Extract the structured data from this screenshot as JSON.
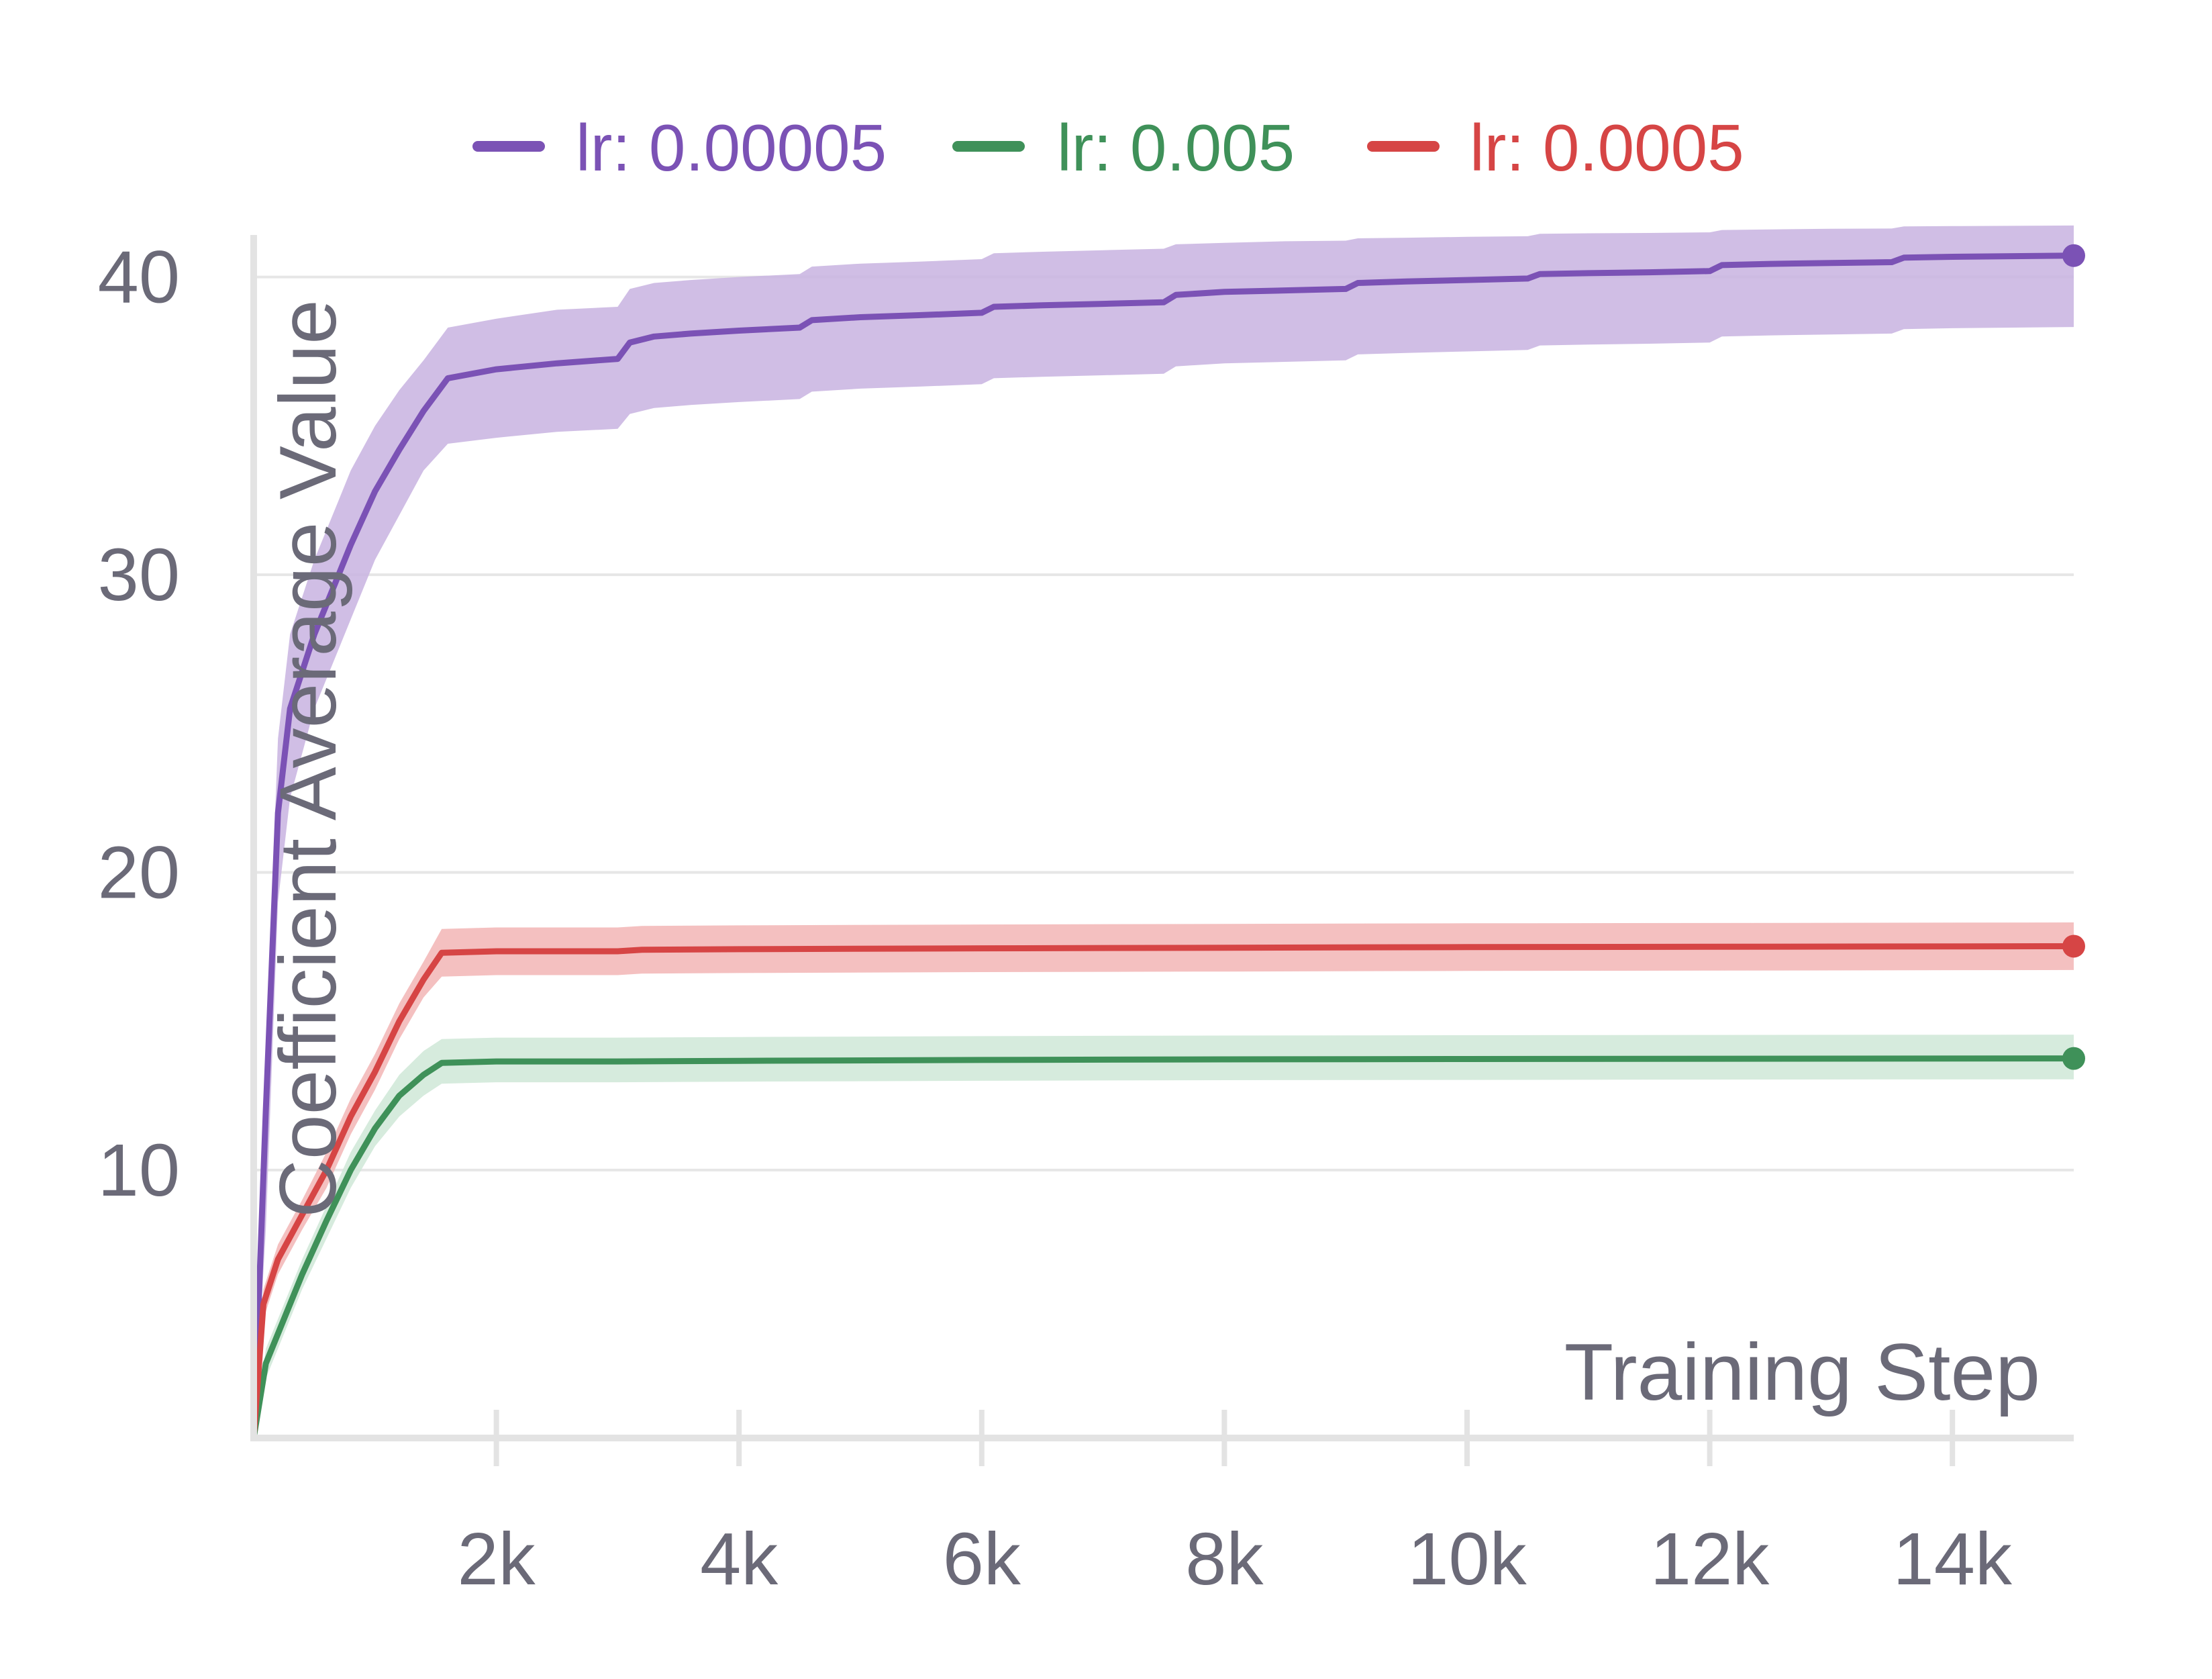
{
  "chart_data": {
    "type": "line",
    "xlabel": "Training Step",
    "ylabel": "Coefficient Average Value",
    "xlim": [
      0,
      15000
    ],
    "ylim": [
      1,
      41.3
    ],
    "xticks": [
      2000,
      4000,
      6000,
      8000,
      10000,
      12000,
      14000
    ],
    "xtick_labels": [
      "2k",
      "4k",
      "6k",
      "8k",
      "10k",
      "12k",
      "14k"
    ],
    "yticks": [
      10,
      20,
      30,
      40
    ],
    "ytick_labels": [
      "10",
      "20",
      "30",
      "40"
    ],
    "grid": "horizontal",
    "legend_position": "top",
    "series": [
      {
        "name": "lr: 0.00005",
        "color": "#7b52b5",
        "band_color": "#c8b3e0",
        "x": [
          0,
          100,
          200,
          300,
          500,
          700,
          800,
          1000,
          1200,
          1400,
          1600,
          2000,
          2500,
          3000,
          3100,
          3300,
          3600,
          4000,
          4500,
          4600,
          5000,
          5500,
          6000,
          6100,
          6500,
          7000,
          7500,
          7600,
          8000,
          8500,
          9000,
          9100,
          9500,
          10000,
          10500,
          10600,
          11000,
          11500,
          12000,
          12100,
          12500,
          13000,
          13500,
          13600,
          14000,
          14500,
          15000
        ],
        "y": [
          1,
          12,
          22,
          25.5,
          28,
          30,
          31,
          32.8,
          34.2,
          35.5,
          36.6,
          36.9,
          37.1,
          37.25,
          37.8,
          38.0,
          38.1,
          38.2,
          38.3,
          38.55,
          38.65,
          38.72,
          38.8,
          39.0,
          39.05,
          39.1,
          39.15,
          39.4,
          39.5,
          39.55,
          39.6,
          39.8,
          39.85,
          39.9,
          39.95,
          40.1,
          40.13,
          40.16,
          40.2,
          40.4,
          40.44,
          40.47,
          40.5,
          40.65,
          40.68,
          40.7,
          40.72
        ],
        "lower": [
          1,
          8,
          19,
          22.5,
          25.5,
          27.5,
          28.5,
          30.5,
          32,
          33.5,
          34.4,
          34.6,
          34.8,
          34.9,
          35.4,
          35.6,
          35.7,
          35.8,
          35.9,
          36.15,
          36.25,
          36.32,
          36.4,
          36.6,
          36.65,
          36.7,
          36.75,
          37.0,
          37.1,
          37.15,
          37.2,
          37.4,
          37.45,
          37.5,
          37.55,
          37.7,
          37.73,
          37.76,
          37.8,
          38.0,
          38.04,
          38.07,
          38.1,
          38.25,
          38.28,
          38.3,
          38.32
        ],
        "upper": [
          1,
          14,
          24.5,
          28,
          30.5,
          32.5,
          33.5,
          35,
          36.2,
          37.2,
          38.3,
          38.6,
          38.9,
          39.0,
          39.6,
          39.8,
          39.9,
          40.0,
          40.1,
          40.35,
          40.45,
          40.52,
          40.6,
          40.8,
          40.85,
          40.9,
          40.95,
          41.1,
          41.15,
          41.2,
          41.22,
          41.3,
          41.32,
          41.35,
          41.37,
          41.45,
          41.47,
          41.48,
          41.5,
          41.58,
          41.6,
          41.62,
          41.63,
          41.7,
          41.71,
          41.72,
          41.73
        ]
      },
      {
        "name": "lr: 0.005",
        "color": "#3f9159",
        "band_color": "#cfe8d7",
        "x": [
          0,
          100,
          250,
          400,
          600,
          800,
          1000,
          1200,
          1400,
          1550,
          2000,
          3000,
          4000,
          6000,
          8000,
          10000,
          12000,
          15000
        ],
        "y": [
          1,
          3.5,
          5.0,
          6.5,
          8.3,
          10.0,
          11.4,
          12.5,
          13.2,
          13.6,
          13.65,
          13.65,
          13.67,
          13.7,
          13.72,
          13.73,
          13.74,
          13.75
        ],
        "lower": [
          1,
          3.0,
          4.5,
          6.0,
          7.7,
          9.4,
          10.8,
          11.8,
          12.5,
          12.9,
          12.95,
          12.95,
          12.97,
          13.0,
          13.02,
          13.03,
          13.04,
          13.05
        ],
        "upper": [
          1,
          4.0,
          5.5,
          7.0,
          8.8,
          10.6,
          12.0,
          13.2,
          14.0,
          14.4,
          14.45,
          14.45,
          14.47,
          14.5,
          14.52,
          14.53,
          14.54,
          14.55
        ]
      },
      {
        "name": "lr: 0.0005",
        "color": "#d64545",
        "band_color": "#f2b5b5",
        "x": [
          0,
          80,
          200,
          400,
          600,
          800,
          1000,
          1200,
          1400,
          1550,
          2000,
          3000,
          3200,
          4000,
          6000,
          8000,
          10000,
          12000,
          15000
        ],
        "y": [
          1,
          5.5,
          7.0,
          8.5,
          10.0,
          11.8,
          13.3,
          15.0,
          16.4,
          17.3,
          17.35,
          17.35,
          17.4,
          17.42,
          17.45,
          17.47,
          17.49,
          17.5,
          17.52
        ],
        "lower": [
          1,
          5.0,
          6.5,
          8.0,
          9.4,
          11.2,
          12.7,
          14.4,
          15.8,
          16.5,
          16.55,
          16.55,
          16.6,
          16.62,
          16.65,
          16.67,
          16.69,
          16.7,
          16.72
        ],
        "upper": [
          1,
          6.0,
          7.5,
          9.0,
          10.6,
          12.4,
          13.9,
          15.6,
          17.0,
          18.1,
          18.15,
          18.15,
          18.2,
          18.22,
          18.25,
          18.27,
          18.29,
          18.3,
          18.32
        ]
      }
    ]
  }
}
